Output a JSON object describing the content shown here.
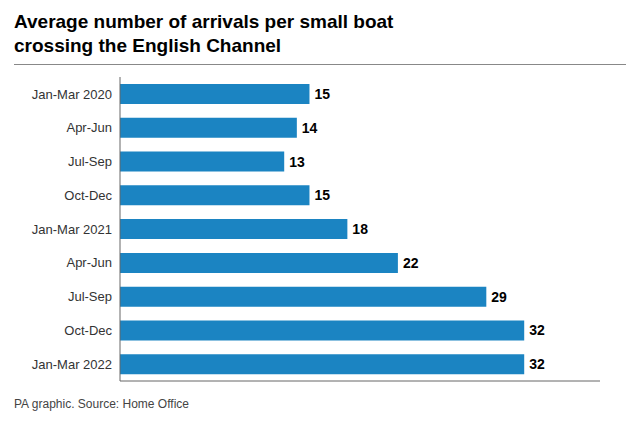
{
  "chart_data": {
    "type": "bar",
    "orientation": "horizontal",
    "title": "Average number of arrivals per small boat\ncrossing the English Channel",
    "footnote": "PA graphic. Source: Home Office",
    "categories": [
      "Jan-Mar 2020",
      "Apr-Jun",
      "Jul-Sep",
      "Oct-Dec",
      "Jan-Mar 2021",
      "Apr-Jun",
      "Jul-Sep",
      "Oct-Dec",
      "Jan-Mar 2022"
    ],
    "values": [
      15,
      14,
      13,
      15,
      18,
      22,
      29,
      32,
      32
    ],
    "color": "#1b84c2",
    "xlim": [
      0,
      38
    ],
    "data_labels": true,
    "tick_labels": "y",
    "grid": false
  }
}
